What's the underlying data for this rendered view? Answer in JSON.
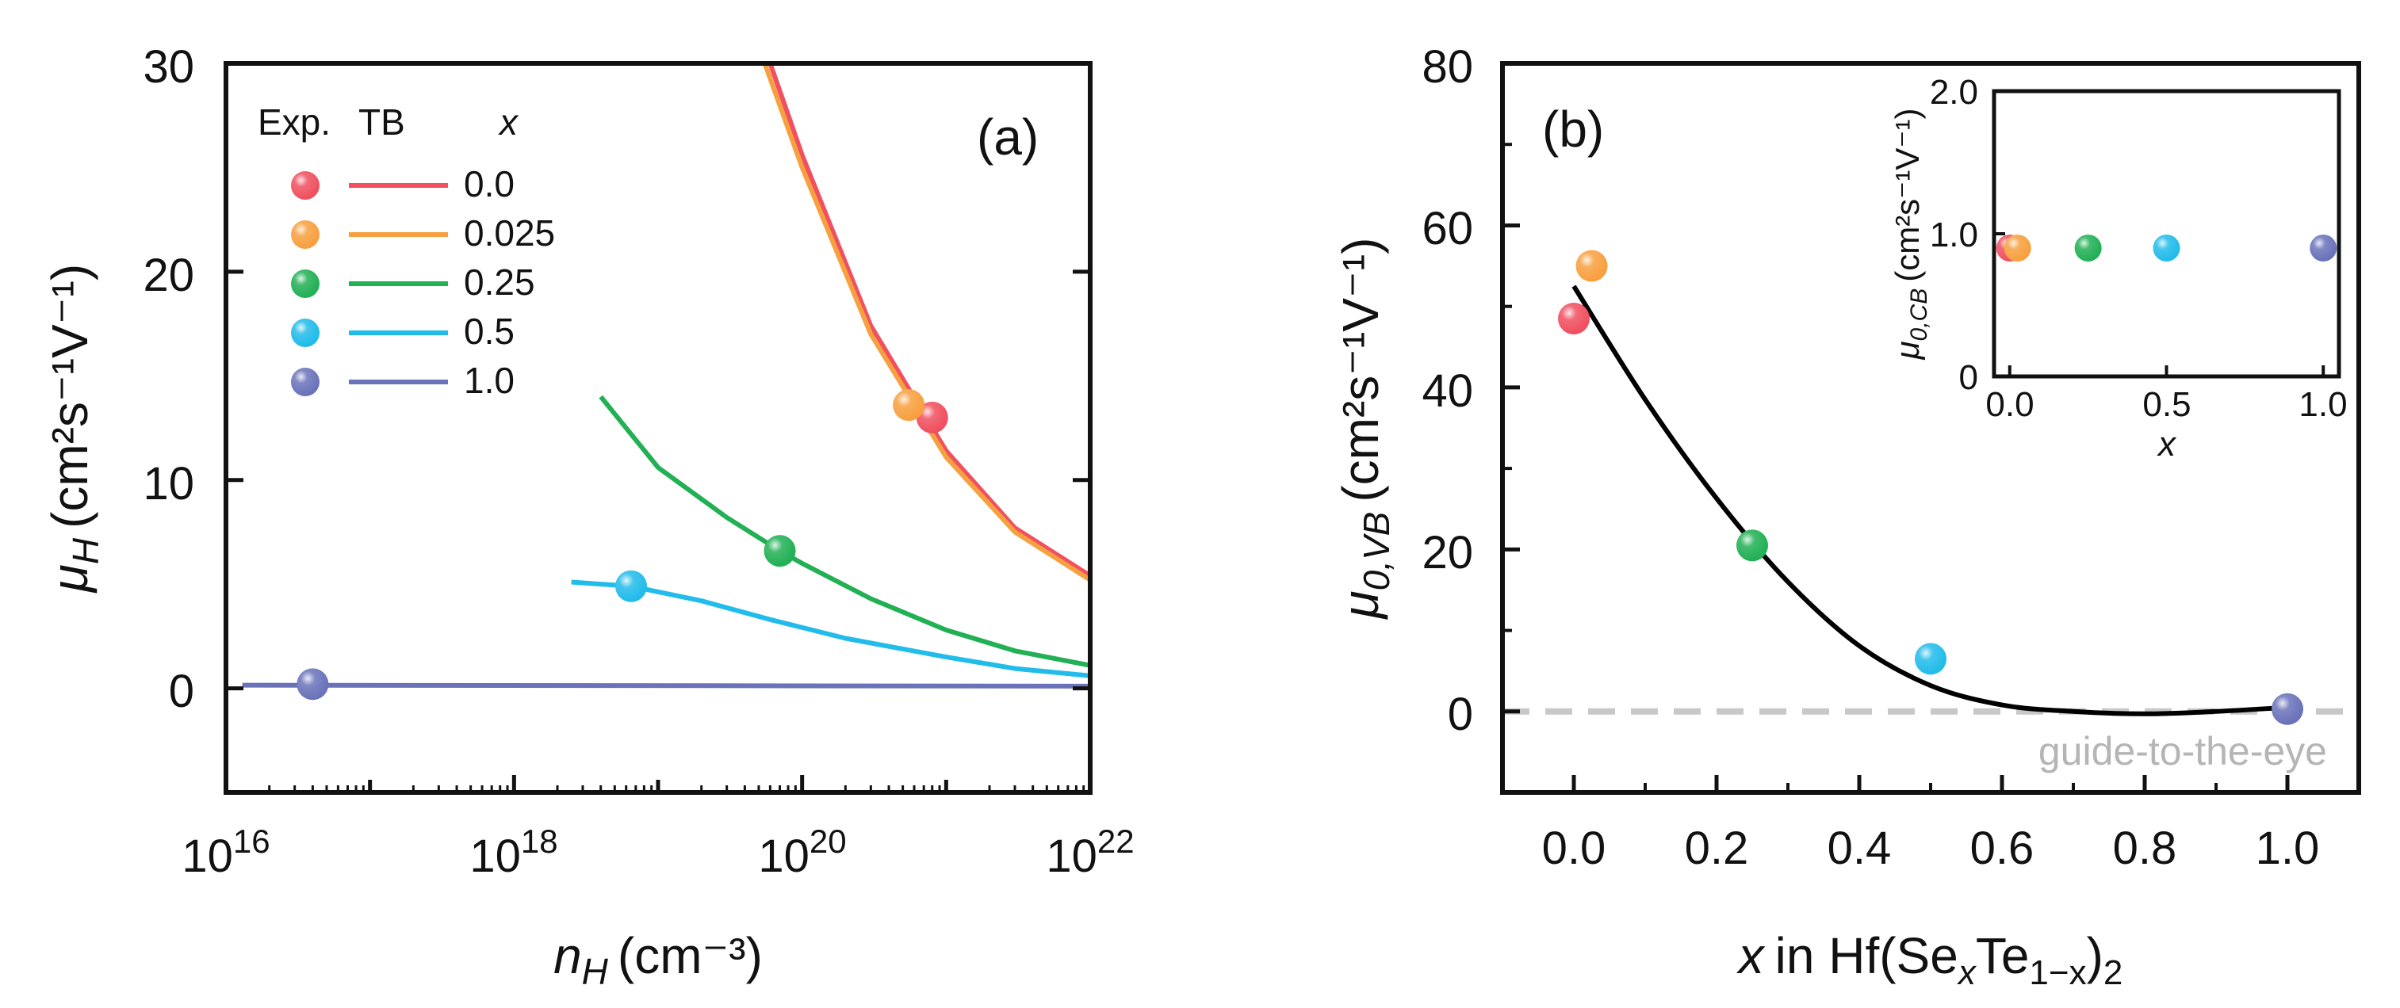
{
  "colors": {
    "x0": "#f0505f",
    "x0025": "#f7a040",
    "x025": "#22b055",
    "x05": "#22bcea",
    "x1": "#6a73ba",
    "fit": "#000000",
    "guide": "#c8c8c8"
  },
  "chart_data": [
    {
      "panel": "(a)",
      "type": "scatter",
      "xscale": "log",
      "xlim": [
        1e+16,
        1e+22
      ],
      "ylim": [
        -5,
        30
      ],
      "yticks": [
        "0",
        "10",
        "20",
        "30"
      ],
      "xticks": [
        {
          "base": "10",
          "exp": "16"
        },
        {
          "base": "10",
          "exp": "18"
        },
        {
          "base": "10",
          "exp": "20"
        },
        {
          "base": "10",
          "exp": "22"
        }
      ],
      "ylabel": {
        "sym": "μ",
        "sub": "H",
        "unit": "(cm²s⁻¹V⁻¹)"
      },
      "xlabel": {
        "sym": "n",
        "sub": "H",
        "unit": "(cm⁻³)"
      },
      "legend": {
        "header_exp": "Exp.",
        "header_tb": "TB",
        "header_x": "x",
        "entries": [
          "0.0",
          "0.025",
          "0.25",
          "0.5",
          "1.0"
        ]
      },
      "series": [
        {
          "name": "0.0",
          "exp": {
            "x": 8e+20,
            "y": 13.0
          },
          "tb": [
            [
              6e+19,
              30
            ],
            [
              1e+20,
              25.6
            ],
            [
              3e+20,
              17.4
            ],
            [
              1e+21,
              11.4
            ],
            [
              3e+21,
              7.7
            ],
            [
              1e+22,
              5.4
            ]
          ]
        },
        {
          "name": "0.025",
          "exp": {
            "x": 5.5e+20,
            "y": 13.6
          },
          "tb": [
            [
              5.5e+19,
              30
            ],
            [
              1e+20,
              25.0
            ],
            [
              3e+20,
              17.0
            ],
            [
              1e+21,
              11.1
            ],
            [
              3e+21,
              7.5
            ],
            [
              1e+22,
              5.2
            ]
          ]
        },
        {
          "name": "0.25",
          "exp": {
            "x": 7e+19,
            "y": 6.6
          },
          "tb": [
            [
              4e+18,
              14.0
            ],
            [
              1e+19,
              10.6
            ],
            [
              3e+19,
              8.2
            ],
            [
              7e+19,
              6.6
            ],
            [
              1e+20,
              6.0
            ],
            [
              3e+20,
              4.3
            ],
            [
              1e+21,
              2.8
            ],
            [
              3e+21,
              1.8
            ],
            [
              1e+22,
              1.1
            ]
          ]
        },
        {
          "name": "0.5",
          "exp": {
            "x": 6.5e+18,
            "y": 4.9
          },
          "tb": [
            [
              2.5e+18,
              5.1
            ],
            [
              6.5e+18,
              4.9
            ],
            [
              2e+19,
              4.2
            ],
            [
              6e+19,
              3.3
            ],
            [
              2e+20,
              2.4
            ],
            [
              1e+21,
              1.5
            ],
            [
              3e+21,
              0.95
            ],
            [
              1e+22,
              0.6
            ]
          ]
        },
        {
          "name": "1.0",
          "exp": {
            "x": 4e+16,
            "y": 0.2
          },
          "tb": [
            [
              1.3e+16,
              0.15
            ],
            [
              1e+22,
              0.1
            ]
          ]
        }
      ]
    },
    {
      "panel": "(b)",
      "type": "scatter",
      "xlim": [
        -0.1,
        1.1
      ],
      "ylim": [
        -10,
        80
      ],
      "xticks": [
        "0.0",
        "0.2",
        "0.4",
        "0.6",
        "0.8",
        "1.0"
      ],
      "yticks": [
        "0",
        "20",
        "40",
        "60",
        "80"
      ],
      "ylabel": {
        "sym": "μ",
        "sub": "0,VB",
        "unit": "(cm²s⁻¹V⁻¹)"
      },
      "xlabel": {
        "x": "x",
        "in": "in Hf(Se",
        "sub1": "x",
        "mid": "Te",
        "sub2": "1−x",
        "end": ")",
        "sub3": "2"
      },
      "guide_label": "guide-to-the-eye",
      "points": [
        {
          "x": 0.0,
          "y": 48.5,
          "series": "0.0"
        },
        {
          "x": 0.025,
          "y": 55.0,
          "series": "0.025"
        },
        {
          "x": 0.25,
          "y": 20.5,
          "series": "0.25"
        },
        {
          "x": 0.5,
          "y": 6.5,
          "series": "0.5"
        },
        {
          "x": 1.0,
          "y": 0.3,
          "series": "1.0"
        }
      ],
      "fit": [
        [
          0.0,
          52.5
        ],
        [
          0.1,
          38.5
        ],
        [
          0.2,
          26.3
        ],
        [
          0.3,
          16.0
        ],
        [
          0.4,
          8.1
        ],
        [
          0.5,
          3.2
        ],
        [
          0.6,
          0.8
        ],
        [
          0.7,
          0.0
        ],
        [
          0.8,
          -0.3
        ],
        [
          0.9,
          0.0
        ],
        [
          1.0,
          0.5
        ]
      ],
      "guide_y": 0,
      "inset": {
        "xlim": [
          -0.05,
          1.05
        ],
        "ylim": [
          0,
          2.0
        ],
        "xticks": [
          "0.0",
          "0.5",
          "1.0"
        ],
        "yticks": [
          "0",
          "1.0",
          "2.0"
        ],
        "ylabel": {
          "sym": "μ",
          "sub": "0,CB",
          "unit": "(cm²s⁻¹V⁻¹)"
        },
        "xlabel": "x",
        "points": [
          {
            "x": 0.0,
            "y": 0.9,
            "series": "0.0"
          },
          {
            "x": 0.025,
            "y": 0.9,
            "series": "0.025"
          },
          {
            "x": 0.25,
            "y": 0.9,
            "series": "0.25"
          },
          {
            "x": 0.5,
            "y": 0.9,
            "series": "0.5"
          },
          {
            "x": 1.0,
            "y": 0.9,
            "series": "1.0"
          }
        ]
      }
    }
  ]
}
